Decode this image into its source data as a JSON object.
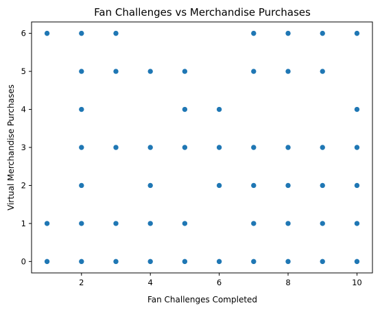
{
  "chart_data": {
    "type": "scatter",
    "title": "Fan Challenges vs Merchandise Purchases",
    "xlabel": "Fan Challenges Completed",
    "ylabel": "Virtual Merchandise Purchases",
    "xlim": [
      0.55,
      10.45
    ],
    "ylim": [
      -0.3,
      6.3
    ],
    "xticks": [
      2,
      4,
      6,
      8,
      10
    ],
    "yticks": [
      0,
      1,
      2,
      3,
      4,
      5,
      6
    ],
    "grid": false,
    "color": "#1f77b4",
    "points": [
      [
        1,
        0
      ],
      [
        1,
        1
      ],
      [
        1,
        6
      ],
      [
        2,
        0
      ],
      [
        2,
        1
      ],
      [
        2,
        2
      ],
      [
        2,
        3
      ],
      [
        2,
        4
      ],
      [
        2,
        5
      ],
      [
        2,
        6
      ],
      [
        3,
        0
      ],
      [
        3,
        1
      ],
      [
        3,
        3
      ],
      [
        3,
        5
      ],
      [
        3,
        6
      ],
      [
        4,
        0
      ],
      [
        4,
        1
      ],
      [
        4,
        2
      ],
      [
        4,
        3
      ],
      [
        4,
        5
      ],
      [
        5,
        0
      ],
      [
        5,
        1
      ],
      [
        5,
        3
      ],
      [
        5,
        4
      ],
      [
        5,
        5
      ],
      [
        6,
        0
      ],
      [
        6,
        2
      ],
      [
        6,
        3
      ],
      [
        6,
        4
      ],
      [
        7,
        0
      ],
      [
        7,
        1
      ],
      [
        7,
        2
      ],
      [
        7,
        3
      ],
      [
        7,
        5
      ],
      [
        7,
        6
      ],
      [
        8,
        0
      ],
      [
        8,
        1
      ],
      [
        8,
        2
      ],
      [
        8,
        3
      ],
      [
        8,
        5
      ],
      [
        8,
        6
      ],
      [
        9,
        0
      ],
      [
        9,
        1
      ],
      [
        9,
        2
      ],
      [
        9,
        3
      ],
      [
        9,
        5
      ],
      [
        9,
        6
      ],
      [
        10,
        0
      ],
      [
        10,
        1
      ],
      [
        10,
        2
      ],
      [
        10,
        3
      ],
      [
        10,
        4
      ],
      [
        10,
        6
      ]
    ]
  }
}
